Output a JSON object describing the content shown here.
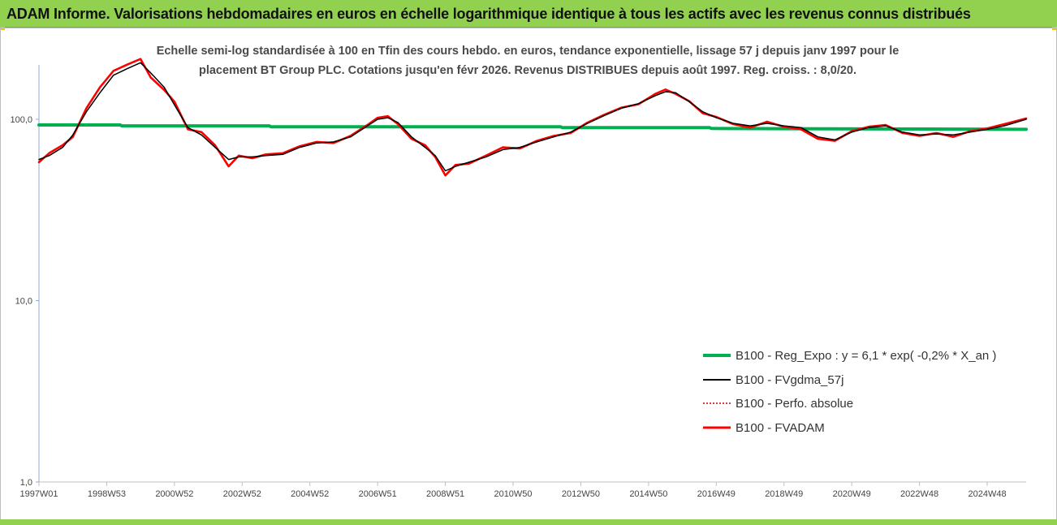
{
  "header": {
    "title": "ADAM Informe. Valorisations hebdomadaires en euros en échelle logarithmique identique à tous les actifs avec les revenus connus distribués"
  },
  "chart_data": {
    "type": "line",
    "title_line1": "Echelle semi-log standardisée à 100 en Tfin des cours hebdo. en euros, tendance exponentielle, lissage 57 j depuis janv 1997 pour le",
    "title_line2": "placement BT Group PLC. Cotations jusqu'en févr 2026. Revenus DISTRIBUES depuis août 1997. Reg. croiss. : 8,0/20.",
    "y_scale": "log",
    "ylim": [
      1,
      200
    ],
    "y_ticks": [
      "1,0",
      "10,0",
      "100,0"
    ],
    "y_tick_values": [
      1,
      10,
      100
    ],
    "x_ticks": [
      "1997W01",
      "1998W53",
      "2000W52",
      "2002W52",
      "2004W52",
      "2006W51",
      "2008W51",
      "2010W50",
      "2012W50",
      "2014W50",
      "2016W49",
      "2018W49",
      "2020W49",
      "2022W48",
      "2024W48"
    ],
    "x_tick_years": [
      1997.0,
      1999.0,
      2001.0,
      2003.0,
      2005.0,
      2007.0,
      2009.0,
      2011.0,
      2013.0,
      2015.0,
      2017.0,
      2019.0,
      2021.0,
      2023.0,
      2025.0
    ],
    "xlim_years": [
      1997.0,
      2026.15
    ],
    "legend_position": "bottom-right",
    "series": [
      {
        "name": "B100 - Reg_Expo : y = 6,1 * exp( -0,2% *  X_an )",
        "color": "#00b050",
        "style": "thick",
        "x": [
          1997.0,
          1999.4,
          1999.45,
          2003.8,
          2003.85,
          2012.4,
          2012.45,
          2016.8,
          2016.85,
          2026.15
        ],
        "values": [
          93,
          93,
          92,
          92,
          91,
          91,
          90,
          90,
          89,
          88
        ]
      },
      {
        "name": "B100 - FVgdma_57j",
        "color": "#000000",
        "style": "thin",
        "x": [
          1997.0,
          1997.3,
          1997.7,
          1998.0,
          1998.4,
          1998.8,
          1999.2,
          1999.6,
          2000.0,
          2000.3,
          2000.7,
          2001.0,
          2001.4,
          2001.8,
          2002.2,
          2002.6,
          2002.9,
          2003.3,
          2003.7,
          2004.2,
          2004.7,
          2005.2,
          2005.7,
          2006.2,
          2006.7,
          2007.0,
          2007.3,
          2007.6,
          2008.0,
          2008.4,
          2008.7,
          2009.0,
          2009.3,
          2009.7,
          2010.2,
          2010.7,
          2011.2,
          2011.7,
          2012.2,
          2012.7,
          2013.2,
          2013.7,
          2014.2,
          2014.7,
          2015.2,
          2015.5,
          2015.8,
          2016.2,
          2016.6,
          2017.0,
          2017.5,
          2018.0,
          2018.5,
          2019.0,
          2019.5,
          2020.0,
          2020.5,
          2021.0,
          2021.5,
          2022.0,
          2022.5,
          2023.0,
          2023.5,
          2024.0,
          2024.5,
          2025.0,
          2025.5,
          2026.15
        ],
        "values": [
          60,
          63,
          70,
          82,
          110,
          140,
          175,
          190,
          205,
          180,
          150,
          120,
          90,
          82,
          70,
          60,
          62,
          62,
          63,
          64,
          70,
          74,
          75,
          80,
          92,
          100,
          102,
          96,
          80,
          70,
          63,
          52,
          55,
          58,
          62,
          68,
          70,
          75,
          80,
          85,
          95,
          105,
          115,
          122,
          135,
          142,
          140,
          125,
          110,
          102,
          95,
          92,
          95,
          92,
          90,
          80,
          77,
          85,
          90,
          92,
          85,
          82,
          83,
          82,
          85,
          88,
          92,
          100
        ]
      },
      {
        "name": "B100 - Perfo. absolue",
        "color": "#c00000",
        "style": "dotted",
        "x": [],
        "values": []
      },
      {
        "name": "B100 - FVADAM",
        "color": "#ff0000",
        "style": "thick",
        "x": [
          1997.0,
          1997.3,
          1997.7,
          1998.0,
          1998.4,
          1998.8,
          1999.2,
          1999.6,
          2000.0,
          2000.3,
          2000.7,
          2001.0,
          2001.4,
          2001.8,
          2002.2,
          2002.6,
          2002.9,
          2003.3,
          2003.7,
          2004.2,
          2004.7,
          2005.2,
          2005.7,
          2006.2,
          2006.7,
          2007.0,
          2007.3,
          2007.6,
          2008.0,
          2008.4,
          2008.7,
          2009.0,
          2009.3,
          2009.7,
          2010.2,
          2010.7,
          2011.2,
          2011.7,
          2012.2,
          2012.7,
          2013.2,
          2013.7,
          2014.2,
          2014.7,
          2015.2,
          2015.5,
          2015.8,
          2016.2,
          2016.6,
          2017.0,
          2017.5,
          2018.0,
          2018.5,
          2019.0,
          2019.5,
          2020.0,
          2020.5,
          2021.0,
          2021.5,
          2022.0,
          2022.5,
          2023.0,
          2023.5,
          2024.0,
          2024.5,
          2025.0,
          2025.5,
          2026.15
        ],
        "values": [
          58,
          65,
          72,
          80,
          115,
          150,
          185,
          200,
          215,
          170,
          145,
          125,
          88,
          85,
          72,
          55,
          63,
          61,
          64,
          65,
          71,
          75,
          74,
          81,
          93,
          102,
          104,
          94,
          78,
          72,
          62,
          49,
          56,
          57,
          63,
          70,
          69,
          76,
          81,
          84,
          96,
          106,
          116,
          121,
          138,
          146,
          138,
          126,
          108,
          103,
          94,
          90,
          97,
          91,
          88,
          78,
          76,
          86,
          91,
          93,
          84,
          81,
          84,
          80,
          86,
          89,
          94,
          101
        ]
      }
    ]
  }
}
